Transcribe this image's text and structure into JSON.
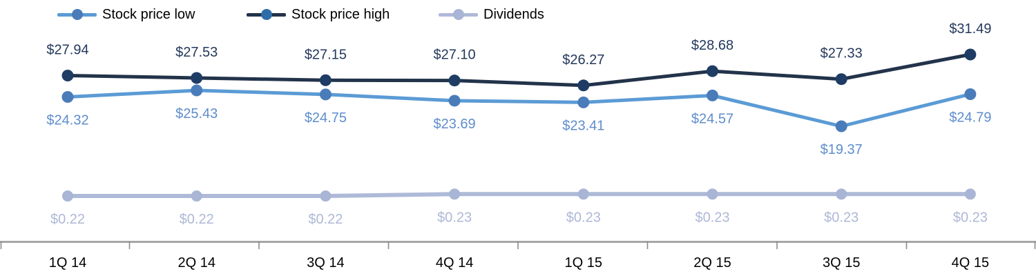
{
  "page": {
    "background": "#FFFFFF"
  },
  "colors": {
    "low_line": "#5B9BD5",
    "low_marker": "#4A7CBA",
    "low_label_text": "#5E8DCC",
    "high_line": "#22334A",
    "high_marker": "#1E3C64",
    "high_legend_dot": "#2E6DA8",
    "high_label_text": "#24385B",
    "dividends_line": "#AEBAD7",
    "dividends_marker": "#A8B5D4",
    "dividends_label_text": "#AEB8D6",
    "axis_line": "#A6A6A6",
    "tick": "#8C8C8C",
    "category_label_text": "#000000",
    "legend_text": "#000000"
  },
  "chart_data": {
    "type": "line",
    "title": "",
    "legend_position": "top",
    "grid": false,
    "x_axis": "quarters",
    "categories": [
      "1Q 14",
      "2Q 14",
      "3Q 14",
      "4Q 14",
      "1Q 15",
      "2Q 15",
      "3Q 15",
      "4Q 15"
    ],
    "series": [
      {
        "name": "Stock price low",
        "values": [
          24.32,
          25.43,
          24.75,
          23.69,
          23.41,
          24.57,
          19.37,
          24.79
        ],
        "labels": [
          "$24.32",
          "$25.43",
          "$24.75",
          "$23.69",
          "$23.41",
          "$24.57",
          "$19.37",
          "$24.79"
        ]
      },
      {
        "name": "Stock price high",
        "values": [
          27.94,
          27.53,
          27.15,
          27.1,
          26.27,
          28.68,
          27.33,
          31.49
        ],
        "labels": [
          "$27.94",
          "$27.53",
          "$27.15",
          "$27.10",
          "$26.27",
          "$28.68",
          "$27.33",
          "$31.49"
        ]
      },
      {
        "name": "Dividends",
        "values": [
          0.22,
          0.22,
          0.22,
          0.23,
          0.23,
          0.23,
          0.23,
          0.23
        ],
        "labels": [
          "$0.22",
          "$0.22",
          "$0.22",
          "$0.23",
          "$0.23",
          "$0.23",
          "$0.23",
          "$0.23"
        ]
      }
    ]
  }
}
